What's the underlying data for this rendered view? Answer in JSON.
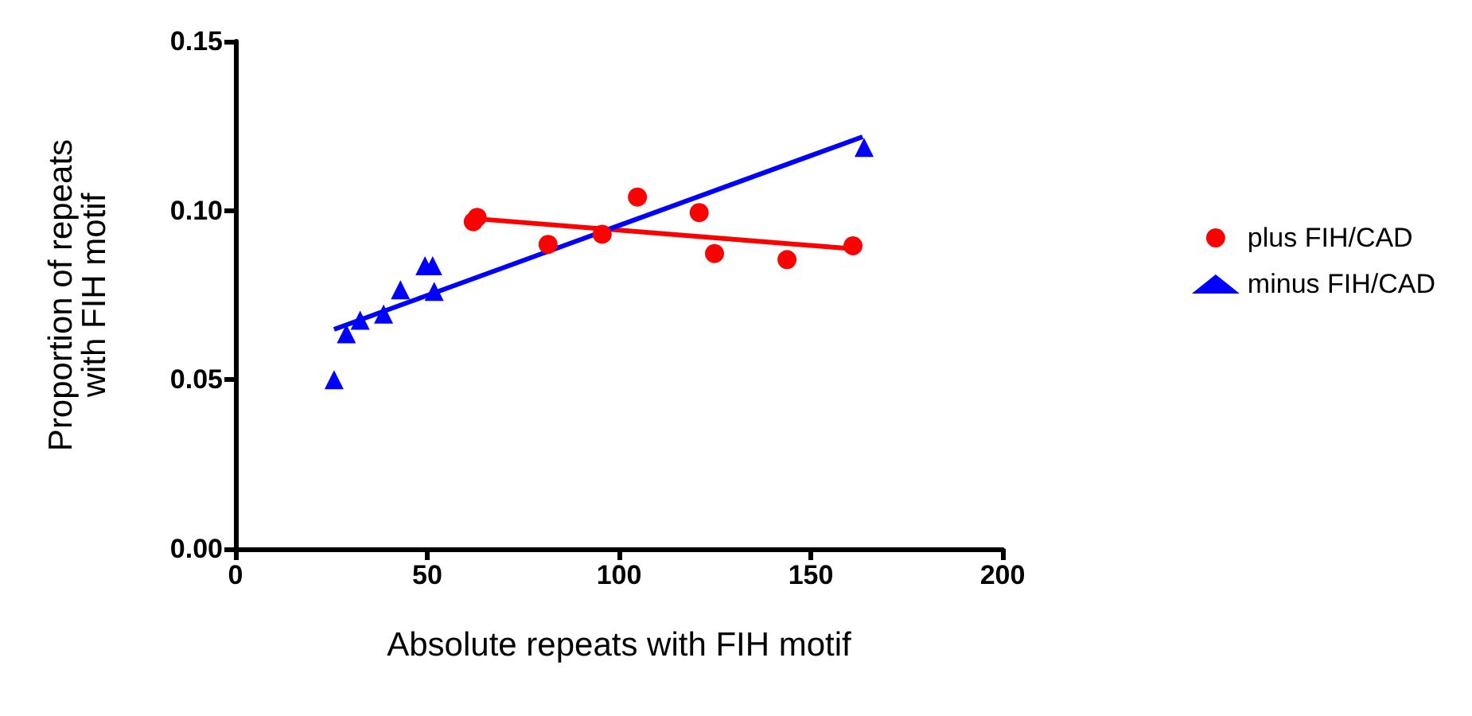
{
  "chart_data": {
    "type": "scatter",
    "xlabel": "Absolute repeats with FIH motif",
    "ylabel": "Proportion of repeats\nwith FIH motif",
    "xlim": [
      0,
      200
    ],
    "xticks": [
      0,
      50,
      100,
      150,
      200
    ],
    "ylim": [
      0,
      0.15
    ],
    "yticks": [
      {
        "value": 0,
        "label": "0.00"
      },
      0.05,
      {
        "value": 0.1,
        "label": "0.10"
      },
      0.15
    ],
    "grid": false,
    "legend": "right",
    "series": [
      {
        "name": "plus FIH/CAD",
        "color": "#ff0000",
        "marker": "circle",
        "x": [
          62,
          63,
          81.5,
          95.6,
          104.8,
          120.9,
          124.9,
          143.8,
          161
        ],
        "values": [
          0.0967,
          0.098,
          0.09,
          0.093,
          0.104,
          0.0994,
          0.0873,
          0.0855,
          0.0896
        ]
      },
      {
        "name": "minus FIH/CAD",
        "color": "#0000ff",
        "marker": "triangle",
        "x": [
          25.7,
          28.9,
          32.5,
          38.6,
          43,
          49.4,
          51.4,
          51.8,
          163.9
        ],
        "values": [
          0.05,
          0.0636,
          0.0676,
          0.0694,
          0.0766,
          0.0837,
          0.0837,
          0.0761,
          0.1187
        ]
      },
      {
        "type": "line",
        "color": "#ff0000",
        "marker": "none",
        "x": [
          62.6,
          161
        ],
        "values": [
          0.0976,
          0.0887
        ]
      },
      {
        "type": "line",
        "color": "#0000ff",
        "marker": "none",
        "x": [
          25.7,
          163.5
        ],
        "values": [
          0.0649,
          0.1218
        ]
      }
    ]
  }
}
